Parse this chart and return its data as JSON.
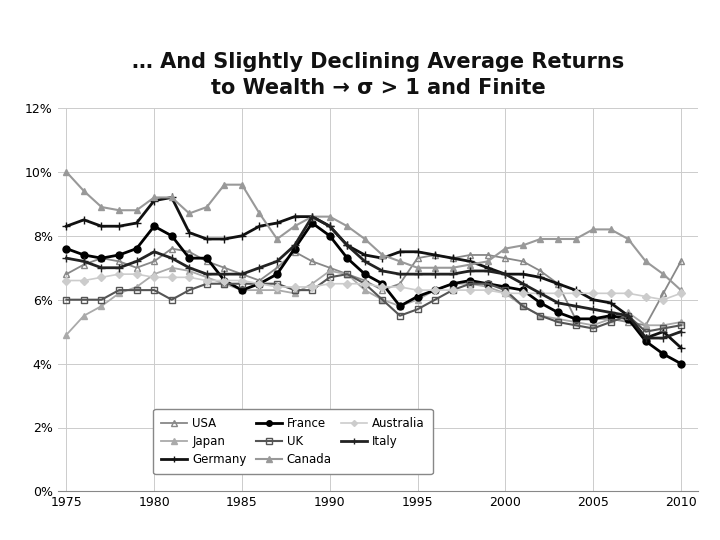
{
  "title_line1": "… And Slightly Declining Average Returns",
  "title_line2": "to Wealth → σ > 1 and Finite",
  "years": [
    1975,
    1976,
    1977,
    1978,
    1979,
    1980,
    1981,
    1982,
    1983,
    1984,
    1985,
    1986,
    1987,
    1988,
    1989,
    1990,
    1991,
    1992,
    1993,
    1994,
    1995,
    1996,
    1997,
    1998,
    1999,
    2000,
    2001,
    2002,
    2003,
    2004,
    2005,
    2006,
    2007,
    2008,
    2009,
    2010
  ],
  "USA": [
    0.068,
    0.071,
    0.073,
    0.072,
    0.07,
    0.072,
    0.076,
    0.075,
    0.072,
    0.07,
    0.068,
    0.066,
    0.07,
    0.075,
    0.072,
    0.07,
    0.068,
    0.066,
    0.063,
    0.065,
    0.073,
    0.074,
    0.073,
    0.074,
    0.074,
    0.073,
    0.072,
    0.069,
    0.065,
    0.054,
    0.054,
    0.054,
    0.053,
    0.052,
    0.062,
    0.072
  ],
  "Japan": [
    0.049,
    0.055,
    0.058,
    0.062,
    0.064,
    0.068,
    0.07,
    0.069,
    0.067,
    0.065,
    0.063,
    0.063,
    0.063,
    0.062,
    0.065,
    0.069,
    0.068,
    0.063,
    0.06,
    0.058,
    0.06,
    0.063,
    0.065,
    0.065,
    0.064,
    0.062,
    0.058,
    0.055,
    0.054,
    0.053,
    0.052,
    0.054,
    0.056,
    0.052,
    0.052,
    0.053
  ],
  "Germany": [
    0.083,
    0.085,
    0.083,
    0.083,
    0.084,
    0.091,
    0.092,
    0.081,
    0.079,
    0.079,
    0.08,
    0.083,
    0.084,
    0.086,
    0.086,
    0.083,
    0.077,
    0.074,
    0.073,
    0.075,
    0.075,
    0.074,
    0.073,
    0.072,
    0.07,
    0.068,
    0.068,
    0.067,
    0.065,
    0.063,
    0.06,
    0.059,
    0.055,
    0.048,
    0.05,
    0.045
  ],
  "France": [
    0.076,
    0.074,
    0.073,
    0.074,
    0.076,
    0.083,
    0.08,
    0.073,
    0.073,
    0.066,
    0.063,
    0.065,
    0.068,
    0.076,
    0.084,
    0.08,
    0.073,
    0.068,
    0.065,
    0.058,
    0.061,
    0.063,
    0.065,
    0.066,
    0.065,
    0.064,
    0.063,
    0.059,
    0.056,
    0.054,
    0.054,
    0.055,
    0.054,
    0.047,
    0.043,
    0.04
  ],
  "UK": [
    0.06,
    0.06,
    0.06,
    0.063,
    0.063,
    0.063,
    0.06,
    0.063,
    0.065,
    0.065,
    0.065,
    0.065,
    0.065,
    0.063,
    0.063,
    0.067,
    0.068,
    0.065,
    0.06,
    0.055,
    0.057,
    0.06,
    0.063,
    0.065,
    0.065,
    0.063,
    0.058,
    0.055,
    0.053,
    0.052,
    0.051,
    0.053,
    0.055,
    0.05,
    0.051,
    0.052
  ],
  "Canada": [
    0.1,
    0.094,
    0.089,
    0.088,
    0.088,
    0.092,
    0.092,
    0.087,
    0.089,
    0.096,
    0.096,
    0.087,
    0.079,
    0.083,
    0.086,
    0.086,
    0.083,
    0.079,
    0.074,
    0.072,
    0.07,
    0.07,
    0.07,
    0.071,
    0.072,
    0.076,
    0.077,
    0.079,
    0.079,
    0.079,
    0.082,
    0.082,
    0.079,
    0.072,
    0.068,
    0.063
  ],
  "Australia": [
    0.066,
    0.066,
    0.067,
    0.068,
    0.068,
    0.067,
    0.067,
    0.067,
    0.066,
    0.066,
    0.066,
    0.065,
    0.064,
    0.064,
    0.064,
    0.065,
    0.065,
    0.065,
    0.064,
    0.064,
    0.063,
    0.063,
    0.063,
    0.063,
    0.063,
    0.062,
    0.062,
    0.062,
    0.062,
    0.062,
    0.062,
    0.062,
    0.062,
    0.061,
    0.06,
    0.062
  ],
  "Italy": [
    0.073,
    0.072,
    0.07,
    0.07,
    0.072,
    0.075,
    0.073,
    0.07,
    0.068,
    0.068,
    0.068,
    0.07,
    0.072,
    0.077,
    0.086,
    0.083,
    0.077,
    0.072,
    0.069,
    0.068,
    0.068,
    0.068,
    0.068,
    0.069,
    0.069,
    0.068,
    0.065,
    0.062,
    0.059,
    0.058,
    0.057,
    0.056,
    0.055,
    0.048,
    0.048,
    0.05
  ],
  "ylim": [
    0.0,
    0.12
  ],
  "yticks": [
    0.0,
    0.02,
    0.04,
    0.06,
    0.08,
    0.1,
    0.12
  ],
  "ytick_labels": [
    "0%",
    "2%",
    "4%",
    "6%",
    "8%",
    "10%",
    "12%"
  ],
  "xticks": [
    1975,
    1980,
    1985,
    1990,
    1995,
    2000,
    2005,
    2010
  ],
  "bg_color": "#ffffff",
  "grid_color": "#cccccc"
}
